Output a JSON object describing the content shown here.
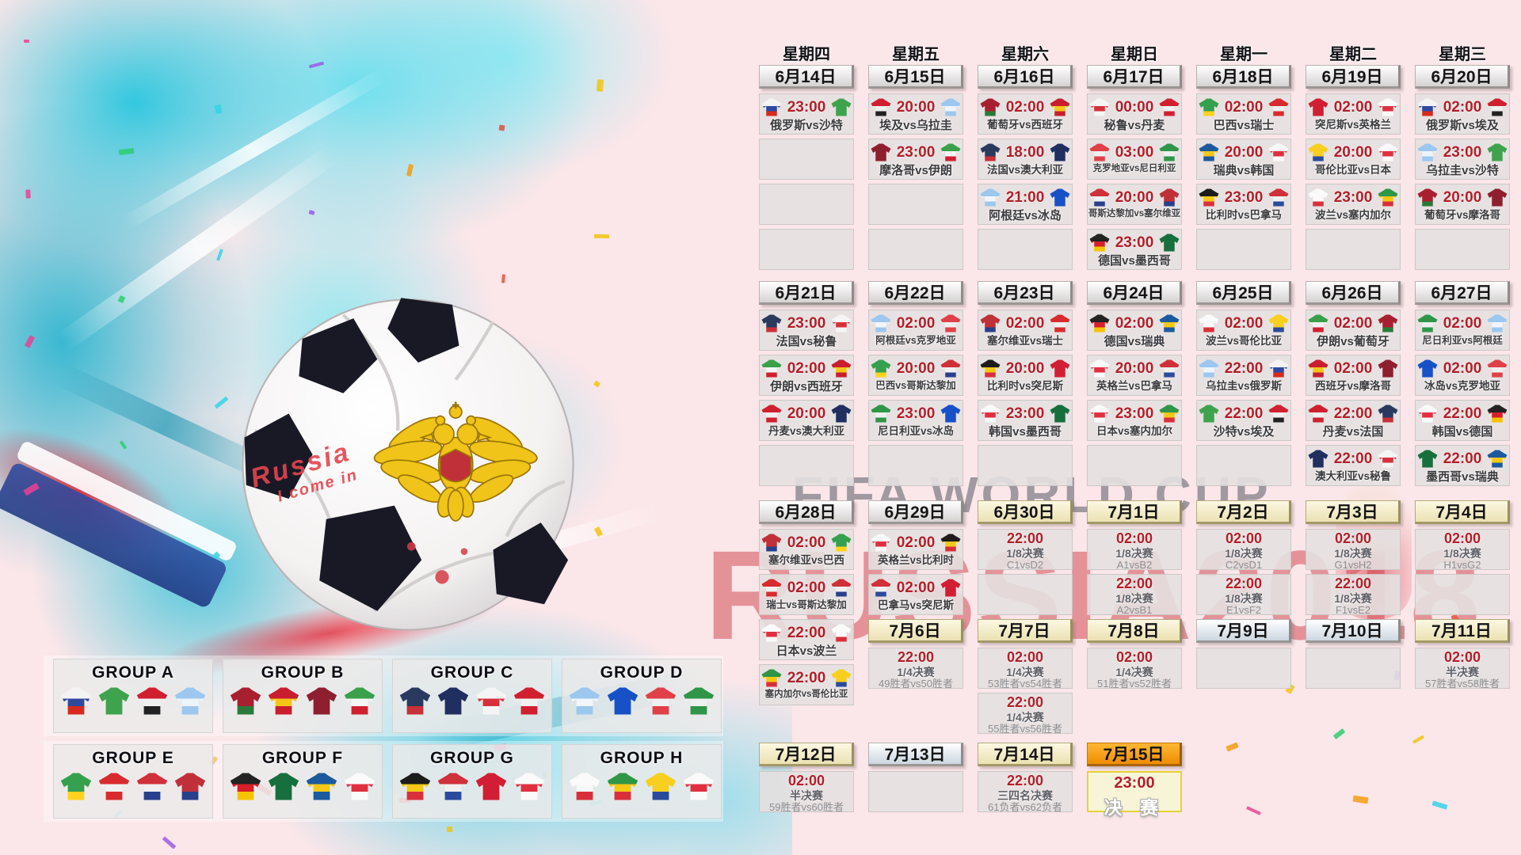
{
  "weekdays": [
    "星期四",
    "星期五",
    "星期六",
    "星期日",
    "星期一",
    "星期二",
    "星期三"
  ],
  "watermark": {
    "line1": "FIFA WORLD CUP",
    "line2": "RUSSIA2018"
  },
  "ball_text": {
    "line1": "Russia",
    "line2": "I come in"
  },
  "colors": {
    "background": "#fbe6e9",
    "time_red": "#b41e28",
    "date_grey": "#e9e6e6",
    "date_beige": "#f2ecca",
    "date_light": "#e8eef4",
    "date_orange": "#f49a10",
    "cell_grey": "#e4e0e0",
    "final_bg": "#f8f4d8",
    "final_border": "#e4d334",
    "splash_teal": "#35cfe3",
    "watermark_grey": "#8d929c",
    "watermark_red": "#d85a60",
    "confetti": [
      "#e84393",
      "#9b59e8",
      "#f1c40f",
      "#35d2e8",
      "#e74c3c",
      "#2ecc71",
      "#f39c12"
    ]
  },
  "jersey_colors": {
    "俄罗斯": [
      "#f4f4f4",
      "#2e4a9e",
      "#d52b1e"
    ],
    "沙特": [
      "#3fa34d"
    ],
    "埃及": [
      "#d02030",
      "#f0f0f0",
      "#222222"
    ],
    "乌拉圭": [
      "#9cc7f0",
      "#eef4fb",
      "#9cc7f0"
    ],
    "葡萄牙": [
      "#a82030",
      "#a82030",
      "#2a7a3a"
    ],
    "西班牙": [
      "#c81e2e",
      "#f5c518",
      "#c81e2e"
    ],
    "摩洛哥": [
      "#8e1f2f"
    ],
    "伊朗": [
      "#3aa04a",
      "#f5f5f5",
      "#d02030"
    ],
    "法国": [
      "#2a3a5e",
      "#2a3a5e",
      "#c8303a"
    ],
    "澳大利亚": [
      "#202e60"
    ],
    "秘鲁": [
      "#f5f5f5",
      "#d8303a",
      "#f5f5f5"
    ],
    "丹麦": [
      "#d02030",
      "#f0f0f0",
      "#d02030"
    ],
    "阿根廷": [
      "#9cc7ee",
      "#f2f6fa",
      "#9cc7ee"
    ],
    "冰岛": [
      "#1850c8"
    ],
    "克罗地亚": [
      "#e04048",
      "#f0f0f0",
      "#e04048"
    ],
    "尼日利亚": [
      "#2f9648",
      "#f0f0f0",
      "#2f9648"
    ],
    "巴西": [
      "#35a04e",
      "#35a04e",
      "#ffd21e"
    ],
    "瑞士": [
      "#d82b2e",
      "#f0f0f0",
      "#d82b2e"
    ],
    "哥斯达黎加": [
      "#d0303a",
      "#f0f0f0",
      "#28408c"
    ],
    "塞尔维亚": [
      "#c03038",
      "#c03038",
      "#28408c"
    ],
    "德国": [
      "#232323",
      "#d81e28",
      "#f5c400"
    ],
    "墨西哥": [
      "#176f3d"
    ],
    "瑞典": [
      "#1c5a9e",
      "#f5c815",
      "#1c5a9e"
    ],
    "韩国": [
      "#fafafa",
      "#e03040",
      "#fafafa"
    ],
    "比利时": [
      "#1c1c1c",
      "#f5c815",
      "#d8303a"
    ],
    "巴拿马": [
      "#d0303a",
      "#f0f0f0",
      "#2a4a9c"
    ],
    "突尼斯": [
      "#d21e34"
    ],
    "英格兰": [
      "#fafafa",
      "#e03040",
      "#fafafa"
    ],
    "哥伦比亚": [
      "#f8cf1e",
      "#f8cf1e",
      "#2a4a9c"
    ],
    "日本": [
      "#fafafa",
      "#e03040",
      "#fafafa"
    ],
    "波兰": [
      "#fafafa",
      "#fafafa",
      "#d8303a"
    ],
    "塞内加尔": [
      "#2f9648",
      "#f5c815",
      "#d8303a"
    ]
  },
  "groups": [
    {
      "name": "GROUP A",
      "teams": [
        "俄罗斯",
        "沙特",
        "埃及",
        "乌拉圭"
      ]
    },
    {
      "name": "GROUP B",
      "teams": [
        "葡萄牙",
        "西班牙",
        "摩洛哥",
        "伊朗"
      ]
    },
    {
      "name": "GROUP C",
      "teams": [
        "法国",
        "澳大利亚",
        "秘鲁",
        "丹麦"
      ]
    },
    {
      "name": "GROUP D",
      "teams": [
        "阿根廷",
        "冰岛",
        "克罗地亚",
        "尼日利亚"
      ]
    },
    {
      "name": "GROUP E",
      "teams": [
        "巴西",
        "瑞士",
        "哥斯达黎加",
        "塞尔维亚"
      ]
    },
    {
      "name": "GROUP F",
      "teams": [
        "德国",
        "墨西哥",
        "瑞典",
        "韩国"
      ]
    },
    {
      "name": "GROUP G",
      "teams": [
        "比利时",
        "巴拿马",
        "突尼斯",
        "英格兰"
      ]
    },
    {
      "name": "GROUP H",
      "teams": [
        "波兰",
        "塞内加尔",
        "哥伦比亚",
        "日本"
      ]
    }
  ],
  "weeks": [
    {
      "columns": [
        {
          "items": [
            {
              "d": "6月14日",
              "s": "grey"
            },
            {
              "t": "23:00",
              "m": "俄罗斯vs沙特",
              "h": "俄罗斯",
              "a": "沙特"
            },
            {
              "e": 1
            },
            {
              "e": 1
            },
            {
              "e": 1
            }
          ]
        },
        {
          "items": [
            {
              "d": "6月15日",
              "s": "grey"
            },
            {
              "t": "20:00",
              "m": "埃及vs乌拉圭",
              "h": "埃及",
              "a": "乌拉圭"
            },
            {
              "t": "23:00",
              "m": "摩洛哥vs伊朗",
              "h": "摩洛哥",
              "a": "伊朗"
            },
            {
              "e": 1
            },
            {
              "e": 1
            }
          ]
        },
        {
          "items": [
            {
              "d": "6月16日",
              "s": "grey"
            },
            {
              "t": "02:00",
              "m": "葡萄牙vs西班牙",
              "h": "葡萄牙",
              "a": "西班牙"
            },
            {
              "t": "18:00",
              "m": "法国vs澳大利亚",
              "h": "法国",
              "a": "澳大利亚"
            },
            {
              "t": "21:00",
              "m": "阿根廷vs冰岛",
              "h": "阿根廷",
              "a": "冰岛"
            },
            {
              "e": 1
            }
          ]
        },
        {
          "items": [
            {
              "d": "6月17日",
              "s": "grey"
            },
            {
              "t": "00:00",
              "m": "秘鲁vs丹麦",
              "h": "秘鲁",
              "a": "丹麦"
            },
            {
              "t": "03:00",
              "m": "克罗地亚vs尼日利亚",
              "h": "克罗地亚",
              "a": "尼日利亚"
            },
            {
              "t": "20:00",
              "m": "哥斯达黎加vs塞尔维亚",
              "h": "哥斯达黎加",
              "a": "塞尔维亚"
            },
            {
              "t": "23:00",
              "m": "德国vs墨西哥",
              "h": "德国",
              "a": "墨西哥"
            }
          ]
        },
        {
          "items": [
            {
              "d": "6月18日",
              "s": "grey"
            },
            {
              "t": "02:00",
              "m": "巴西vs瑞士",
              "h": "巴西",
              "a": "瑞士"
            },
            {
              "t": "20:00",
              "m": "瑞典vs韩国",
              "h": "瑞典",
              "a": "韩国"
            },
            {
              "t": "23:00",
              "m": "比利时vs巴拿马",
              "h": "比利时",
              "a": "巴拿马"
            },
            {
              "e": 1
            }
          ]
        },
        {
          "items": [
            {
              "d": "6月19日",
              "s": "grey"
            },
            {
              "t": "02:00",
              "m": "突尼斯vs英格兰",
              "h": "突尼斯",
              "a": "英格兰"
            },
            {
              "t": "20:00",
              "m": "哥伦比亚vs日本",
              "h": "哥伦比亚",
              "a": "日本"
            },
            {
              "t": "23:00",
              "m": "波兰vs塞内加尔",
              "h": "波兰",
              "a": "塞内加尔"
            },
            {
              "e": 1
            }
          ]
        },
        {
          "items": [
            {
              "d": "6月20日",
              "s": "grey"
            },
            {
              "t": "02:00",
              "m": "俄罗斯vs埃及",
              "h": "俄罗斯",
              "a": "埃及"
            },
            {
              "t": "23:00",
              "m": "乌拉圭vs沙特",
              "h": "乌拉圭",
              "a": "沙特"
            },
            {
              "t": "20:00",
              "m": "葡萄牙vs摩洛哥",
              "h": "葡萄牙",
              "a": "摩洛哥"
            },
            {
              "e": 1
            }
          ]
        }
      ]
    },
    {
      "columns": [
        {
          "items": [
            {
              "d": "6月21日",
              "s": "grey"
            },
            {
              "t": "23:00",
              "m": "法国vs秘鲁",
              "h": "法国",
              "a": "秘鲁"
            },
            {
              "t": "02:00",
              "m": "伊朗vs西班牙",
              "h": "伊朗",
              "a": "西班牙"
            },
            {
              "t": "20:00",
              "m": "丹麦vs澳大利亚",
              "h": "丹麦",
              "a": "澳大利亚"
            },
            {
              "e": 1
            }
          ]
        },
        {
          "items": [
            {
              "d": "6月22日",
              "s": "grey"
            },
            {
              "t": "02:00",
              "m": "阿根廷vs克罗地亚",
              "h": "阿根廷",
              "a": "克罗地亚"
            },
            {
              "t": "20:00",
              "m": "巴西vs哥斯达黎加",
              "h": "巴西",
              "a": "哥斯达黎加"
            },
            {
              "t": "23:00",
              "m": "尼日利亚vs冰岛",
              "h": "尼日利亚",
              "a": "冰岛"
            },
            {
              "e": 1
            }
          ]
        },
        {
          "items": [
            {
              "d": "6月23日",
              "s": "grey"
            },
            {
              "t": "02:00",
              "m": "塞尔维亚vs瑞士",
              "h": "塞尔维亚",
              "a": "瑞士"
            },
            {
              "t": "20:00",
              "m": "比利时vs突尼斯",
              "h": "比利时",
              "a": "突尼斯"
            },
            {
              "t": "23:00",
              "m": "韩国vs墨西哥",
              "h": "韩国",
              "a": "墨西哥"
            },
            {
              "e": 1
            }
          ]
        },
        {
          "items": [
            {
              "d": "6月24日",
              "s": "grey"
            },
            {
              "t": "02:00",
              "m": "德国vs瑞典",
              "h": "德国",
              "a": "瑞典"
            },
            {
              "t": "20:00",
              "m": "英格兰vs巴拿马",
              "h": "英格兰",
              "a": "巴拿马"
            },
            {
              "t": "23:00",
              "m": "日本vs塞内加尔",
              "h": "日本",
              "a": "塞内加尔"
            },
            {
              "e": 1
            }
          ]
        },
        {
          "items": [
            {
              "d": "6月25日",
              "s": "grey"
            },
            {
              "t": "02:00",
              "m": "波兰vs哥伦比亚",
              "h": "波兰",
              "a": "哥伦比亚"
            },
            {
              "t": "22:00",
              "m": "乌拉圭vs俄罗斯",
              "h": "乌拉圭",
              "a": "俄罗斯"
            },
            {
              "t": "22:00",
              "m": "沙特vs埃及",
              "h": "沙特",
              "a": "埃及"
            },
            {
              "e": 1
            }
          ]
        },
        {
          "items": [
            {
              "d": "6月26日",
              "s": "grey"
            },
            {
              "t": "02:00",
              "m": "伊朗vs葡萄牙",
              "h": "伊朗",
              "a": "葡萄牙"
            },
            {
              "t": "02:00",
              "m": "西班牙vs摩洛哥",
              "h": "西班牙",
              "a": "摩洛哥"
            },
            {
              "t": "22:00",
              "m": "丹麦vs法国",
              "h": "丹麦",
              "a": "法国"
            },
            {
              "t": "22:00",
              "m": "澳大利亚vs秘鲁",
              "h": "澳大利亚",
              "a": "秘鲁"
            }
          ]
        },
        {
          "items": [
            {
              "d": "6月27日",
              "s": "grey"
            },
            {
              "t": "02:00",
              "m": "尼日利亚vs阿根廷",
              "h": "尼日利亚",
              "a": "阿根廷"
            },
            {
              "t": "02:00",
              "m": "冰岛vs克罗地亚",
              "h": "冰岛",
              "a": "克罗地亚"
            },
            {
              "t": "22:00",
              "m": "韩国vs德国",
              "h": "韩国",
              "a": "德国"
            },
            {
              "t": "22:00",
              "m": "墨西哥vs瑞典",
              "h": "墨西哥",
              "a": "瑞典"
            }
          ]
        }
      ]
    },
    {
      "columns": [
        {
          "items": [
            {
              "d": "6月28日",
              "s": "grey"
            },
            {
              "t": "02:00",
              "m": "塞尔维亚vs巴西",
              "h": "塞尔维亚",
              "a": "巴西"
            },
            {
              "t": "02:00",
              "m": "瑞士vs哥斯达黎加",
              "h": "瑞士",
              "a": "哥斯达黎加"
            },
            {
              "t": "22:00",
              "m": "日本vs波兰",
              "h": "日本",
              "a": "波兰"
            },
            {
              "t": "22:00",
              "m": "塞内加尔vs哥伦比亚",
              "h": "塞内加尔",
              "a": "哥伦比亚"
            }
          ]
        },
        {
          "items": [
            {
              "d": "6月29日",
              "s": "grey"
            },
            {
              "t": "02:00",
              "m": "英格兰vs比利时",
              "h": "英格兰",
              "a": "比利时"
            },
            {
              "t": "02:00",
              "m": "巴拿马vs突尼斯",
              "h": "巴拿马",
              "a": "突尼斯"
            },
            {
              "d": "7月6日",
              "s": "beige"
            },
            {
              "t": "22:00",
              "k": "1/4决赛",
              "w": "49胜者vs50胜者"
            }
          ]
        },
        {
          "items": [
            {
              "d": "6月30日",
              "s": "beige"
            },
            {
              "t": "22:00",
              "k": "1/8决赛",
              "w": "C1vsD2"
            },
            {
              "e": 1
            },
            {
              "d": "7月7日",
              "s": "beige"
            },
            {
              "t": "02:00",
              "k": "1/4决赛",
              "w": "53胜者vs54胜者"
            },
            {
              "t": "22:00",
              "k": "1/4决赛",
              "w": "55胜者vs56胜者"
            }
          ]
        },
        {
          "items": [
            {
              "d": "7月1日",
              "s": "beige"
            },
            {
              "t": "02:00",
              "k": "1/8决赛",
              "w": "A1vsB2"
            },
            {
              "t": "22:00",
              "k": "1/8决赛",
              "w": "A2vsB1"
            },
            {
              "d": "7月8日",
              "s": "beige"
            },
            {
              "t": "02:00",
              "k": "1/4决赛",
              "w": "51胜者vs52胜者"
            }
          ]
        },
        {
          "items": [
            {
              "d": "7月2日",
              "s": "beige"
            },
            {
              "t": "02:00",
              "k": "1/8决赛",
              "w": "C2vsD1"
            },
            {
              "t": "22:00",
              "k": "1/8决赛",
              "w": "E1vsF2"
            },
            {
              "d": "7月9日",
              "s": "light"
            },
            {
              "e": 1
            }
          ]
        },
        {
          "items": [
            {
              "d": "7月3日",
              "s": "beige"
            },
            {
              "t": "02:00",
              "k": "1/8决赛",
              "w": "G1vsH2"
            },
            {
              "t": "22:00",
              "k": "1/8决赛",
              "w": "F1vsE2"
            },
            {
              "d": "7月10日",
              "s": "light"
            },
            {
              "e": 1
            }
          ]
        },
        {
          "items": [
            {
              "d": "7月4日",
              "s": "beige"
            },
            {
              "t": "02:00",
              "k": "1/8决赛",
              "w": "H1vsG2"
            },
            {
              "e": 1
            },
            {
              "d": "7月11日",
              "s": "beige"
            },
            {
              "t": "02:00",
              "k": "半决赛",
              "w": "57胜者vs58胜者"
            }
          ]
        }
      ]
    },
    {
      "columns": [
        {
          "items": [
            {
              "d": "7月12日",
              "s": "beige"
            },
            {
              "t": "02:00",
              "k": "半决赛",
              "w": "59胜者vs60胜者"
            }
          ]
        },
        {
          "items": [
            {
              "d": "7月13日",
              "s": "light"
            },
            {
              "e": 1
            }
          ]
        },
        {
          "items": [
            {
              "d": "7月14日",
              "s": "beige"
            },
            {
              "t": "22:00",
              "k": "三四名决赛",
              "w": "61负者vs62负者"
            }
          ]
        },
        {
          "items": [
            {
              "d": "7月15日",
              "s": "orange"
            },
            {
              "t": "23:00",
              "f": "决 赛"
            }
          ]
        }
      ]
    }
  ]
}
